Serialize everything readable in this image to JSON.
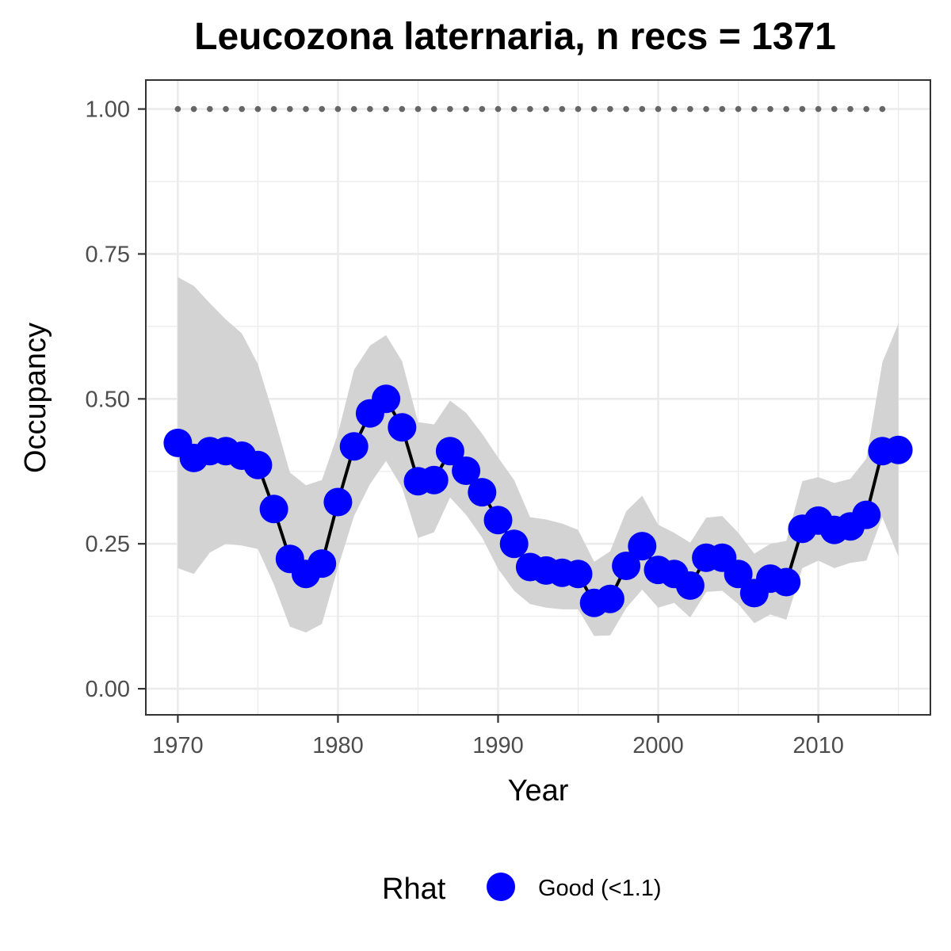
{
  "chart_data": {
    "type": "line",
    "title": "Leucozona laternaria, n recs = 1371",
    "xlabel": "Year",
    "ylabel": "Occupancy",
    "xlim": [
      1968,
      2017
    ],
    "ylim": [
      -0.045,
      1.05
    ],
    "x_ticks": [
      1970,
      1980,
      1990,
      2000,
      2010
    ],
    "x_tick_labels": [
      "1970",
      "1980",
      "1990",
      "2000",
      "2010"
    ],
    "y_ticks": [
      0,
      0.25,
      0.5,
      0.75,
      1.0
    ],
    "y_tick_labels": [
      "0.00",
      "0.25",
      "0.50",
      "0.75",
      "1.00"
    ],
    "grid": true,
    "years": [
      1970,
      1971,
      1972,
      1973,
      1974,
      1975,
      1976,
      1977,
      1978,
      1979,
      1980,
      1981,
      1982,
      1983,
      1984,
      1985,
      1986,
      1987,
      1988,
      1989,
      1990,
      1991,
      1992,
      1993,
      1994,
      1995,
      1996,
      1997,
      1998,
      1999,
      2000,
      2001,
      2002,
      2003,
      2004,
      2005,
      2006,
      2007,
      2008,
      2009,
      2010,
      2011,
      2012,
      2013,
      2014,
      2015
    ],
    "occupancy": [
      0.424,
      0.398,
      0.41,
      0.41,
      0.402,
      0.386,
      0.31,
      0.224,
      0.198,
      0.216,
      0.322,
      0.418,
      0.475,
      0.5,
      0.451,
      0.358,
      0.36,
      0.41,
      0.376,
      0.339,
      0.291,
      0.25,
      0.21,
      0.204,
      0.2,
      0.198,
      0.148,
      0.155,
      0.212,
      0.246,
      0.205,
      0.198,
      0.178,
      0.226,
      0.226,
      0.198,
      0.165,
      0.19,
      0.184,
      0.276,
      0.29,
      0.274,
      0.28,
      0.3,
      0.41,
      0.412
    ],
    "ci_upper": [
      0.71,
      0.695,
      0.665,
      0.637,
      0.613,
      0.56,
      0.47,
      0.373,
      0.351,
      0.36,
      0.44,
      0.55,
      0.592,
      0.61,
      0.565,
      0.46,
      0.456,
      0.497,
      0.476,
      0.44,
      0.399,
      0.36,
      0.296,
      0.292,
      0.285,
      0.274,
      0.219,
      0.237,
      0.306,
      0.333,
      0.283,
      0.269,
      0.252,
      0.295,
      0.298,
      0.269,
      0.233,
      0.25,
      0.255,
      0.358,
      0.365,
      0.355,
      0.362,
      0.397,
      0.563,
      0.63
    ],
    "ci_lower": [
      0.208,
      0.198,
      0.235,
      0.25,
      0.247,
      0.241,
      0.18,
      0.107,
      0.097,
      0.112,
      0.209,
      0.298,
      0.353,
      0.393,
      0.347,
      0.26,
      0.27,
      0.33,
      0.3,
      0.261,
      0.207,
      0.169,
      0.146,
      0.14,
      0.137,
      0.137,
      0.091,
      0.092,
      0.139,
      0.171,
      0.14,
      0.148,
      0.123,
      0.167,
      0.169,
      0.146,
      0.113,
      0.128,
      0.119,
      0.208,
      0.221,
      0.208,
      0.217,
      0.221,
      0.296,
      0.228
    ],
    "reference_line": {
      "value": 1.0,
      "x_range": [
        1970,
        2014
      ]
    },
    "legend": {
      "title": "Rhat",
      "entries": [
        {
          "label": "Good (<1.1)",
          "color": "#0000ff"
        }
      ],
      "position": "bottom"
    },
    "colors": {
      "points": "#0000ff",
      "line": "#000000",
      "ribbon": "#d3d3d3",
      "reference": "#666666",
      "panel_border": "#333333",
      "grid": "#ebebeb"
    }
  }
}
